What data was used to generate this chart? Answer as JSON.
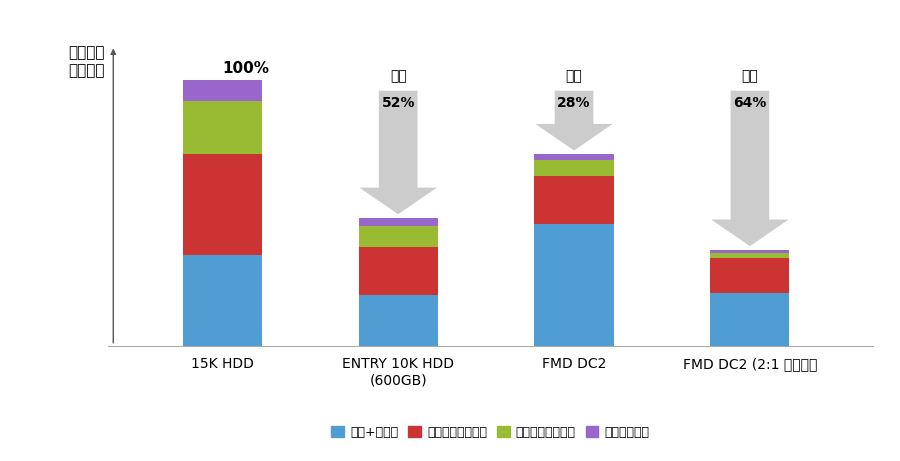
{
  "categories": [
    "15K HDD",
    "ENTRY 10K HDD\n(600GB)",
    "FMD DC2",
    "FMD DC2 (2:1 压缩率）"
  ],
  "segment_keys": [
    "磁盘+磁盘柜",
    "五年升级售后服务",
    "五年用电量及冷却",
    "五年占地面积"
  ],
  "segment_values": [
    [
      34,
      19,
      46,
      20
    ],
    [
      38,
      18,
      18,
      13
    ],
    [
      20,
      8,
      6,
      2
    ],
    [
      8,
      3,
      2,
      1
    ]
  ],
  "colors": [
    "#4f9dd3",
    "#cc3333",
    "#99bb33",
    "#9966cc"
  ],
  "ylim": [
    0,
    118
  ],
  "bar_width": 0.45,
  "annotation_100": "100%",
  "annotations": [
    {
      "text1": "降低",
      "text2": "52%",
      "bar_idx": 1
    },
    {
      "text1": "降低",
      "text2": "28%",
      "bar_idx": 2
    },
    {
      "text1": "降低",
      "text2": "64%",
      "bar_idx": 3
    }
  ],
  "background_color": "#ffffff",
  "arrow_color": "#cccccc",
  "ylabel_line1": "相对单位",
  "ylabel_line2": "容量成本"
}
